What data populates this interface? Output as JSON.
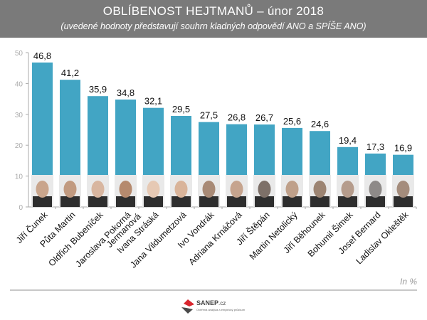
{
  "header": {
    "title": "OBLÍBENOST HEJTMANŮ – únor 2018",
    "subtitle": "(uvedené hodnoty představují souhrn kladných odpovědí ANO a SPÍŠE ANO)"
  },
  "unit_label": "In %",
  "logo": {
    "name": "SANEP",
    "suffix": ".cz",
    "tagline": "Ověřená analýza a empirický průzkum"
  },
  "colors": {
    "bar": "#42a5c4",
    "header_bg": "#7a7a7a",
    "axis": "#aaaaaa",
    "tick_text": "#aaaaaa",
    "label_text": "#111111"
  },
  "chart_data": {
    "type": "bar",
    "title": "OBLÍBENOST HEJTMANŮ – únor 2018",
    "subtitle": "(uvedené hodnoty představují souhrn kladných odpovědí ANO a SPÍŠE ANO)",
    "xlabel": "",
    "ylabel": "In %",
    "ylim": [
      0,
      50
    ],
    "yticks": [
      0,
      10,
      20,
      30,
      40,
      50
    ],
    "grid": false,
    "legend": "none",
    "categories": [
      "Jiří Čunek",
      "Půta Martin",
      "Oldřich Bubeníček",
      "Jaroslava Pokorná Jermanová",
      "Ivana Stráská",
      "Jana Vildumetzová",
      "Ivo Vondrák",
      "Adriana Krnáčová",
      "Jiří Štěpán",
      "Martin Netolický",
      "Jiří Běhounek",
      "Bohumil Šimek",
      "Josef Bernard",
      "Ladislav Okleštěk"
    ],
    "values": [
      46.8,
      41.2,
      35.9,
      34.8,
      32.1,
      29.5,
      27.5,
      26.8,
      26.7,
      25.6,
      24.6,
      19.4,
      17.3,
      16.9
    ],
    "data_labels": [
      "46,8",
      "41,2",
      "35,9",
      "34,8",
      "32,1",
      "29,5",
      "27,5",
      "26,8",
      "26,7",
      "25,6",
      "24,6",
      "19,4",
      "17,3",
      "16,9"
    ],
    "portrait_tones": [
      "#c9a58c",
      "#c19a80",
      "#d8b6a0",
      "#b58a6e",
      "#e6c9b4",
      "#d9b49a",
      "#a88a76",
      "#c6a48e",
      "#7d7068",
      "#bfa08a",
      "#9c8472",
      "#b59c8c",
      "#8e8a88",
      "#a48c7c"
    ]
  }
}
